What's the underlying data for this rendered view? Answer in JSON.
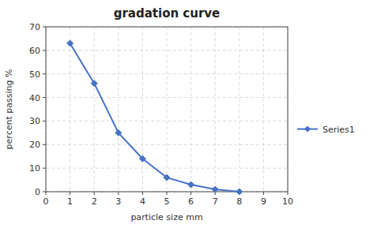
{
  "chart_data": {
    "type": "line",
    "title": "gradation curve",
    "x_label": "particle size mm",
    "y_label": "percent passing %",
    "x": [
      1,
      2,
      3,
      4,
      5,
      6,
      7,
      8
    ],
    "series": [
      {
        "name": "Series1",
        "color": "#4472c4",
        "marker": "diamond",
        "line_style": "solid",
        "values": [
          63,
          46,
          25,
          14,
          6,
          3,
          1,
          0
        ]
      }
    ],
    "xlim": [
      0,
      10
    ],
    "ylim": [
      0,
      70
    ],
    "xticks": [
      0,
      1,
      2,
      3,
      4,
      5,
      6,
      7,
      8,
      9,
      10
    ],
    "yticks": [
      0,
      10,
      20,
      30,
      40,
      50,
      60,
      70
    ],
    "grid": true,
    "legend": "right"
  }
}
